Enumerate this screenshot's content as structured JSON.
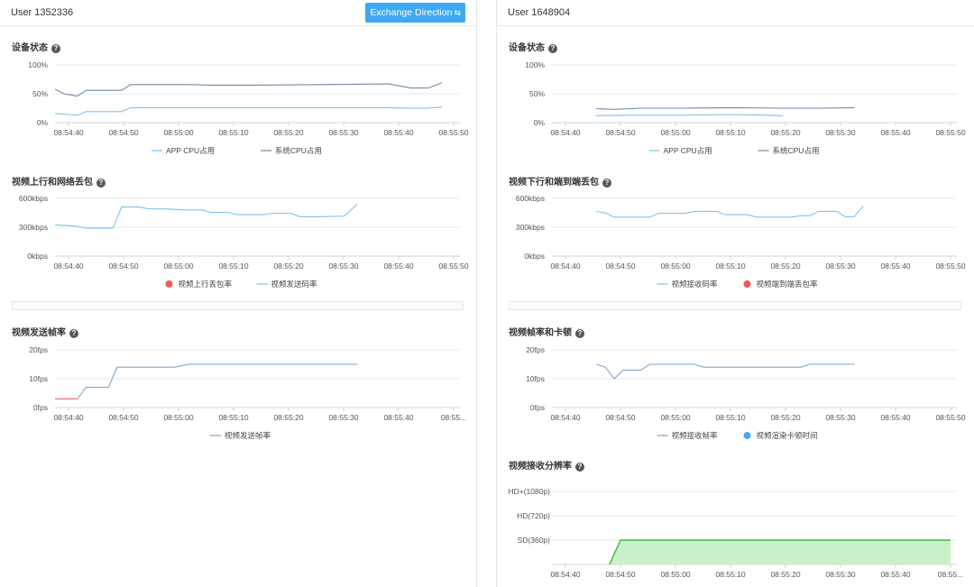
{
  "left": {
    "user_label": "User 1352336",
    "exchange_button": "Exchange Direction",
    "charts": [
      {
        "id": "l-device",
        "type": "line",
        "title": "设备状态",
        "yticks": [
          "0%",
          "50%",
          "100%"
        ],
        "ylim": [
          0,
          100
        ],
        "xticks": [
          "08:54:40",
          "08:54:50",
          "08:55:00",
          "08:55:10",
          "08:55:20",
          "08:55:30",
          "08:55:40",
          "08:55:50"
        ],
        "xlim": [
          0,
          70
        ],
        "series": [
          {
            "name": "APP CPU占用",
            "color": "#7cc3ee",
            "marker": "line",
            "points": [
              [
                0,
                16
              ],
              [
                3,
                14
              ],
              [
                5,
                13
              ],
              [
                7,
                19
              ],
              [
                15,
                19
              ],
              [
                17,
                26
              ],
              [
                45,
                26
              ],
              [
                75,
                26
              ],
              [
                80,
                25
              ],
              [
                84,
                25
              ],
              [
                87,
                27
              ]
            ]
          },
          {
            "name": "系统CPU占用",
            "color": "#6f8ba8",
            "marker": "line",
            "points": [
              [
                0,
                58
              ],
              [
                2,
                50
              ],
              [
                5,
                46
              ],
              [
                7,
                56
              ],
              [
                15,
                56
              ],
              [
                17,
                66
              ],
              [
                30,
                66
              ],
              [
                35,
                65
              ],
              [
                45,
                65
              ],
              [
                60,
                66
              ],
              [
                75,
                67
              ],
              [
                80,
                60
              ],
              [
                84,
                60
              ],
              [
                87,
                69
              ]
            ]
          }
        ]
      },
      {
        "id": "l-uplink",
        "type": "line",
        "title": "视频上行和网络丢包",
        "yticks": [
          "0kbps",
          "300kbps",
          "600kbps"
        ],
        "ylim": [
          0,
          600
        ],
        "xticks": [
          "08:54:40",
          "08:54:50",
          "08:55:00",
          "08:55:10",
          "08:55:20",
          "08:55:30",
          "08:55:40",
          "08:55:50"
        ],
        "xlim": [
          0,
          70
        ],
        "series": [
          {
            "name": "视频上行丢包率",
            "color": "#ee5a5a",
            "marker": "dot",
            "points": []
          },
          {
            "name": "视频发送码率",
            "color": "#7cc3ee",
            "marker": "line",
            "points": [
              [
                0,
                325
              ],
              [
                5,
                310
              ],
              [
                7,
                290
              ],
              [
                13,
                290
              ],
              [
                15,
                510
              ],
              [
                19,
                510
              ],
              [
                21,
                490
              ],
              [
                25,
                490
              ],
              [
                29,
                480
              ],
              [
                33,
                480
              ],
              [
                35,
                455
              ],
              [
                39,
                455
              ],
              [
                41,
                430
              ],
              [
                47,
                430
              ],
              [
                49,
                445
              ],
              [
                53,
                445
              ],
              [
                55,
                410
              ],
              [
                60,
                410
              ],
              [
                65,
                415
              ],
              [
                68,
                540
              ]
            ]
          }
        ]
      },
      {
        "id": "l-sendfps",
        "type": "line",
        "title": "视频发送帧率",
        "yticks": [
          "0fps",
          "10fps",
          "20fps"
        ],
        "ylim": [
          0,
          20
        ],
        "xticks": [
          "08:54:40",
          "08:54:50",
          "08:55:00",
          "08:55:10",
          "08:55:20",
          "08:55:30",
          "08:55:40",
          "08:55..."
        ],
        "xlim": [
          0,
          70
        ],
        "series": [
          {
            "name": "视频发送帧率",
            "color": "#7fa5c8",
            "marker": "line",
            "points": [
              [
                0,
                3
              ],
              [
                5,
                3
              ],
              [
                7,
                7
              ],
              [
                12,
                7
              ],
              [
                14,
                14
              ],
              [
                27,
                14
              ],
              [
                30,
                15
              ],
              [
                68,
                15
              ]
            ]
          }
        ],
        "highlight": {
          "color": "#ee7777",
          "points": [
            [
              0,
              3
            ],
            [
              5,
              3
            ]
          ]
        }
      }
    ]
  },
  "right": {
    "user_label": "User 1648904",
    "charts": [
      {
        "id": "r-device",
        "type": "line",
        "title": "设备状态",
        "yticks": [
          "0%",
          "50%",
          "100%"
        ],
        "ylim": [
          0,
          100
        ],
        "xticks": [
          "08:54:40",
          "08:54:50",
          "08:55:00",
          "08:55:10",
          "08:55:20",
          "08:55:30",
          "08:55:40",
          "08:55:50"
        ],
        "xlim": [
          0,
          70
        ],
        "series": [
          {
            "name": "APP CPU占用",
            "color": "#7cc3ee",
            "marker": "line",
            "points": [
              [
                10,
                12
              ],
              [
                20,
                13
              ],
              [
                30,
                13
              ],
              [
                40,
                14
              ],
              [
                48,
                13
              ],
              [
                52,
                12
              ]
            ]
          },
          {
            "name": "系统CPU占用",
            "color": "#6f8ba8",
            "marker": "line",
            "points": [
              [
                10,
                24
              ],
              [
                14,
                23
              ],
              [
                20,
                25
              ],
              [
                30,
                25
              ],
              [
                40,
                26
              ],
              [
                52,
                25
              ],
              [
                60,
                25
              ],
              [
                68,
                26
              ]
            ]
          }
        ]
      },
      {
        "id": "r-downlink",
        "type": "line",
        "title": "视频下行和端到端丢包",
        "yticks": [
          "0kbps",
          "300kbps",
          "600kbps"
        ],
        "ylim": [
          0,
          600
        ],
        "xticks": [
          "08:54:40",
          "08:54:50",
          "08:55:00",
          "08:55:10",
          "08:55:20",
          "08:55:30",
          "08:55:40",
          "08:55:50"
        ],
        "xlim": [
          0,
          70
        ],
        "series": [
          {
            "name": "视频接收码率",
            "color": "#7cc3ee",
            "marker": "line",
            "points": [
              [
                10,
                465
              ],
              [
                12,
                450
              ],
              [
                14,
                405
              ],
              [
                22,
                405
              ],
              [
                24,
                445
              ],
              [
                30,
                445
              ],
              [
                32,
                465
              ],
              [
                37,
                465
              ],
              [
                39,
                430
              ],
              [
                44,
                430
              ],
              [
                46,
                405
              ],
              [
                54,
                405
              ],
              [
                56,
                420
              ],
              [
                58,
                420
              ],
              [
                60,
                465
              ],
              [
                64,
                465
              ],
              [
                66,
                410
              ],
              [
                68,
                410
              ],
              [
                70,
                520
              ]
            ]
          },
          {
            "name": "视频端到端丢包率",
            "color": "#ee5a5a",
            "marker": "dot",
            "points": []
          }
        ]
      },
      {
        "id": "r-recvfps",
        "type": "line",
        "title": "视频帧率和卡顿",
        "yticks": [
          "0fps",
          "10fps",
          "20fps"
        ],
        "ylim": [
          0,
          20
        ],
        "xticks": [
          "08:54:40",
          "08:54:50",
          "08:55:00",
          "08:55:10",
          "08:55:20",
          "08:55:30",
          "08:55:40",
          "08:55:50"
        ],
        "xlim": [
          0,
          70
        ],
        "series": [
          {
            "name": "视频接收帧率",
            "color": "#7fa5c8",
            "marker": "line",
            "points": [
              [
                10,
                15
              ],
              [
                12,
                14
              ],
              [
                14,
                10
              ],
              [
                16,
                13
              ],
              [
                20,
                13
              ],
              [
                22,
                15
              ],
              [
                32,
                15
              ],
              [
                34,
                14
              ],
              [
                56,
                14
              ],
              [
                58,
                15
              ],
              [
                68,
                15
              ]
            ]
          },
          {
            "name": "视频渲染卡顿时间",
            "color": "#4aa8f0",
            "marker": "dot",
            "points": []
          }
        ]
      },
      {
        "id": "r-resolution",
        "type": "area",
        "title": "视频接收分辨率",
        "ycats": [
          "SD(360p)",
          "HD(720p)",
          "HD+(1080p)"
        ],
        "xticks": [
          "08:54:40",
          "08:54:50",
          "08:55:00",
          "08:55:10",
          "08:55:20",
          "08:55:30",
          "08:55:40",
          "08:55..."
        ],
        "xlim": [
          0,
          70
        ],
        "series": [
          {
            "name": "视频接收分辨率",
            "color": "#43b649",
            "fill": "#c9f0c6",
            "points": [
              [
                8,
                0
              ],
              [
                9,
                0.5
              ],
              [
                10,
                1
              ],
              [
                70,
                1
              ],
              [
                70,
                0
              ]
            ]
          }
        ]
      }
    ]
  }
}
